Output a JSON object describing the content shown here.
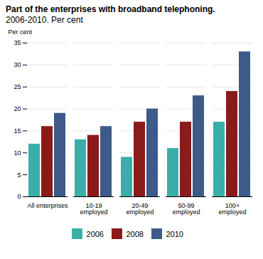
{
  "chart_data": {
    "type": "bar",
    "title": "Part of the enterprises with broadband telephoning.",
    "subtitle": "2006-2010. Per cent",
    "ylabel": "Per cent",
    "categories": [
      "All enterprises",
      "10-19\nemployed",
      "20-49\nemployed",
      "50-99\nemployed",
      "100+\nemployed"
    ],
    "series": [
      {
        "name": "2006",
        "color": "#3aafa9",
        "values": [
          12,
          13,
          9,
          11,
          17
        ]
      },
      {
        "name": "2008",
        "color": "#8b1a1a",
        "values": [
          16,
          14,
          17,
          17,
          24
        ]
      },
      {
        "name": "2010",
        "color": "#3d5a8a",
        "values": [
          19,
          16,
          20,
          23,
          33
        ]
      }
    ],
    "ylim": [
      0,
      35
    ],
    "yticks": [
      0,
      5,
      10,
      15,
      20,
      25,
      30,
      35
    ],
    "grid": true,
    "legend": "bottom"
  }
}
